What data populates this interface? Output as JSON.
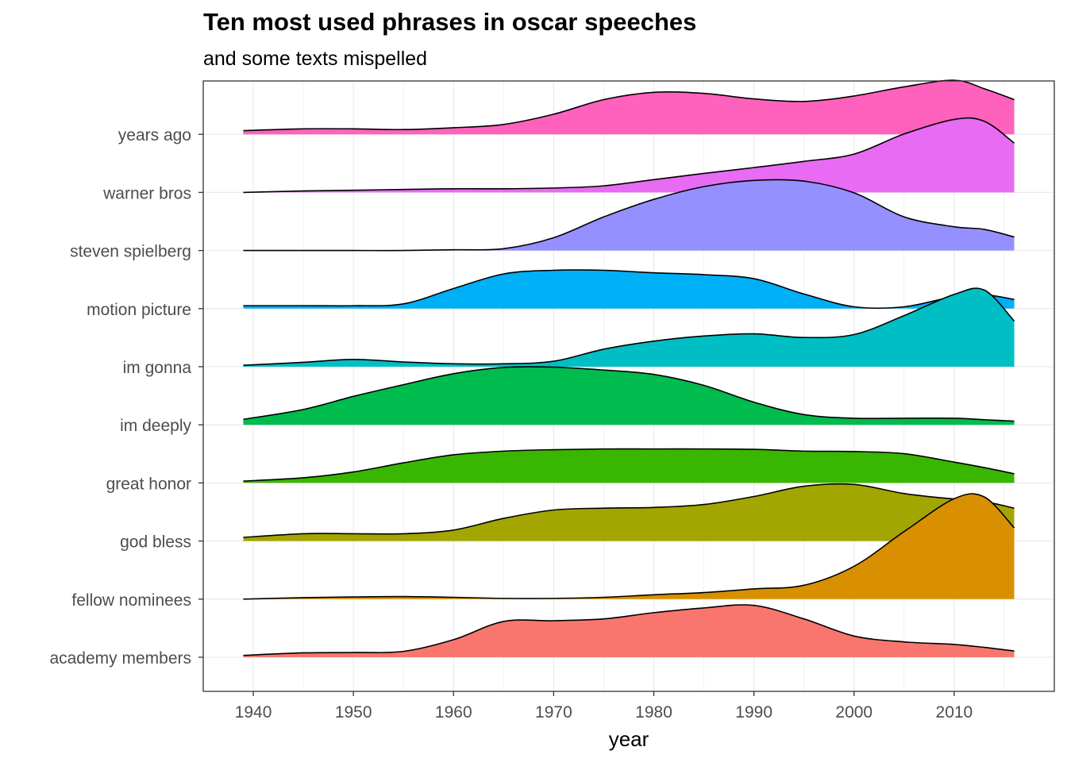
{
  "chart_data": {
    "type": "area",
    "subtype": "ridgeline-density",
    "title": "Ten most used phrases in oscar speeches",
    "subtitle": "and some texts mispelled",
    "xlabel": "year",
    "ylabel": "",
    "xlim": [
      1935,
      2020
    ],
    "x_ticks": [
      1940,
      1950,
      1960,
      1970,
      1980,
      1990,
      2000,
      2010
    ],
    "grid": true,
    "legend": "none",
    "categories": [
      "academy members",
      "fellow nominees",
      "god bless",
      "great honor",
      "im deeply",
      "im gonna",
      "motion picture",
      "steven spielberg",
      "warner bros",
      "years ago"
    ],
    "x": [
      1939,
      1945,
      1950,
      1955,
      1960,
      1965,
      1970,
      1975,
      1980,
      1985,
      1990,
      1995,
      2000,
      2005,
      2010,
      2013,
      2016
    ],
    "series": [
      {
        "name": "academy members",
        "color": "#F8766D",
        "values": [
          0.05,
          0.12,
          0.13,
          0.16,
          0.48,
          0.98,
          1.0,
          1.05,
          1.22,
          1.35,
          1.42,
          1.05,
          0.58,
          0.42,
          0.35,
          0.27,
          0.17
        ]
      },
      {
        "name": "fellow nominees",
        "color": "#D89000",
        "values": [
          0.0,
          0.04,
          0.06,
          0.07,
          0.05,
          0.02,
          0.02,
          0.05,
          0.12,
          0.18,
          0.28,
          0.38,
          0.9,
          1.85,
          2.75,
          2.8,
          1.95
        ]
      },
      {
        "name": "god bless",
        "color": "#A3A500",
        "values": [
          0.1,
          0.2,
          0.2,
          0.2,
          0.3,
          0.62,
          0.85,
          0.9,
          0.92,
          1.0,
          1.22,
          1.5,
          1.55,
          1.3,
          1.15,
          1.08,
          0.9
        ]
      },
      {
        "name": "great honor",
        "color": "#39B600",
        "values": [
          0.05,
          0.14,
          0.3,
          0.55,
          0.77,
          0.87,
          0.91,
          0.93,
          0.93,
          0.93,
          0.92,
          0.87,
          0.86,
          0.8,
          0.57,
          0.42,
          0.25
        ]
      },
      {
        "name": "im deeply",
        "color": "#00BB4E",
        "values": [
          0.15,
          0.42,
          0.78,
          1.1,
          1.4,
          1.57,
          1.58,
          1.5,
          1.38,
          1.08,
          0.62,
          0.28,
          0.18,
          0.18,
          0.18,
          0.14,
          0.1
        ]
      },
      {
        "name": "im gonna",
        "color": "#00BFC4",
        "values": [
          0.04,
          0.12,
          0.2,
          0.13,
          0.08,
          0.08,
          0.15,
          0.48,
          0.7,
          0.84,
          0.9,
          0.8,
          0.88,
          1.4,
          1.98,
          2.1,
          1.25
        ]
      },
      {
        "name": "motion picture",
        "color": "#00B0F6",
        "values": [
          0.08,
          0.08,
          0.08,
          0.13,
          0.55,
          0.95,
          1.05,
          1.05,
          0.98,
          0.93,
          0.82,
          0.4,
          0.05,
          0.05,
          0.33,
          0.38,
          0.25
        ]
      },
      {
        "name": "steven spielberg",
        "color": "#9590FF",
        "values": [
          0.0,
          0.0,
          0.0,
          0.0,
          0.02,
          0.05,
          0.35,
          0.92,
          1.4,
          1.75,
          1.92,
          1.9,
          1.58,
          0.92,
          0.65,
          0.58,
          0.37
        ]
      },
      {
        "name": "warner bros",
        "color": "#E76BF3",
        "values": [
          0.0,
          0.04,
          0.06,
          0.08,
          0.1,
          0.1,
          0.12,
          0.18,
          0.35,
          0.52,
          0.68,
          0.85,
          1.05,
          1.6,
          2.0,
          1.95,
          1.35
        ]
      },
      {
        "name": "years ago",
        "color": "#FF62BC",
        "values": [
          0.1,
          0.15,
          0.15,
          0.13,
          0.18,
          0.27,
          0.55,
          0.95,
          1.15,
          1.12,
          0.97,
          0.9,
          1.05,
          1.3,
          1.48,
          1.25,
          0.95
        ]
      }
    ]
  }
}
